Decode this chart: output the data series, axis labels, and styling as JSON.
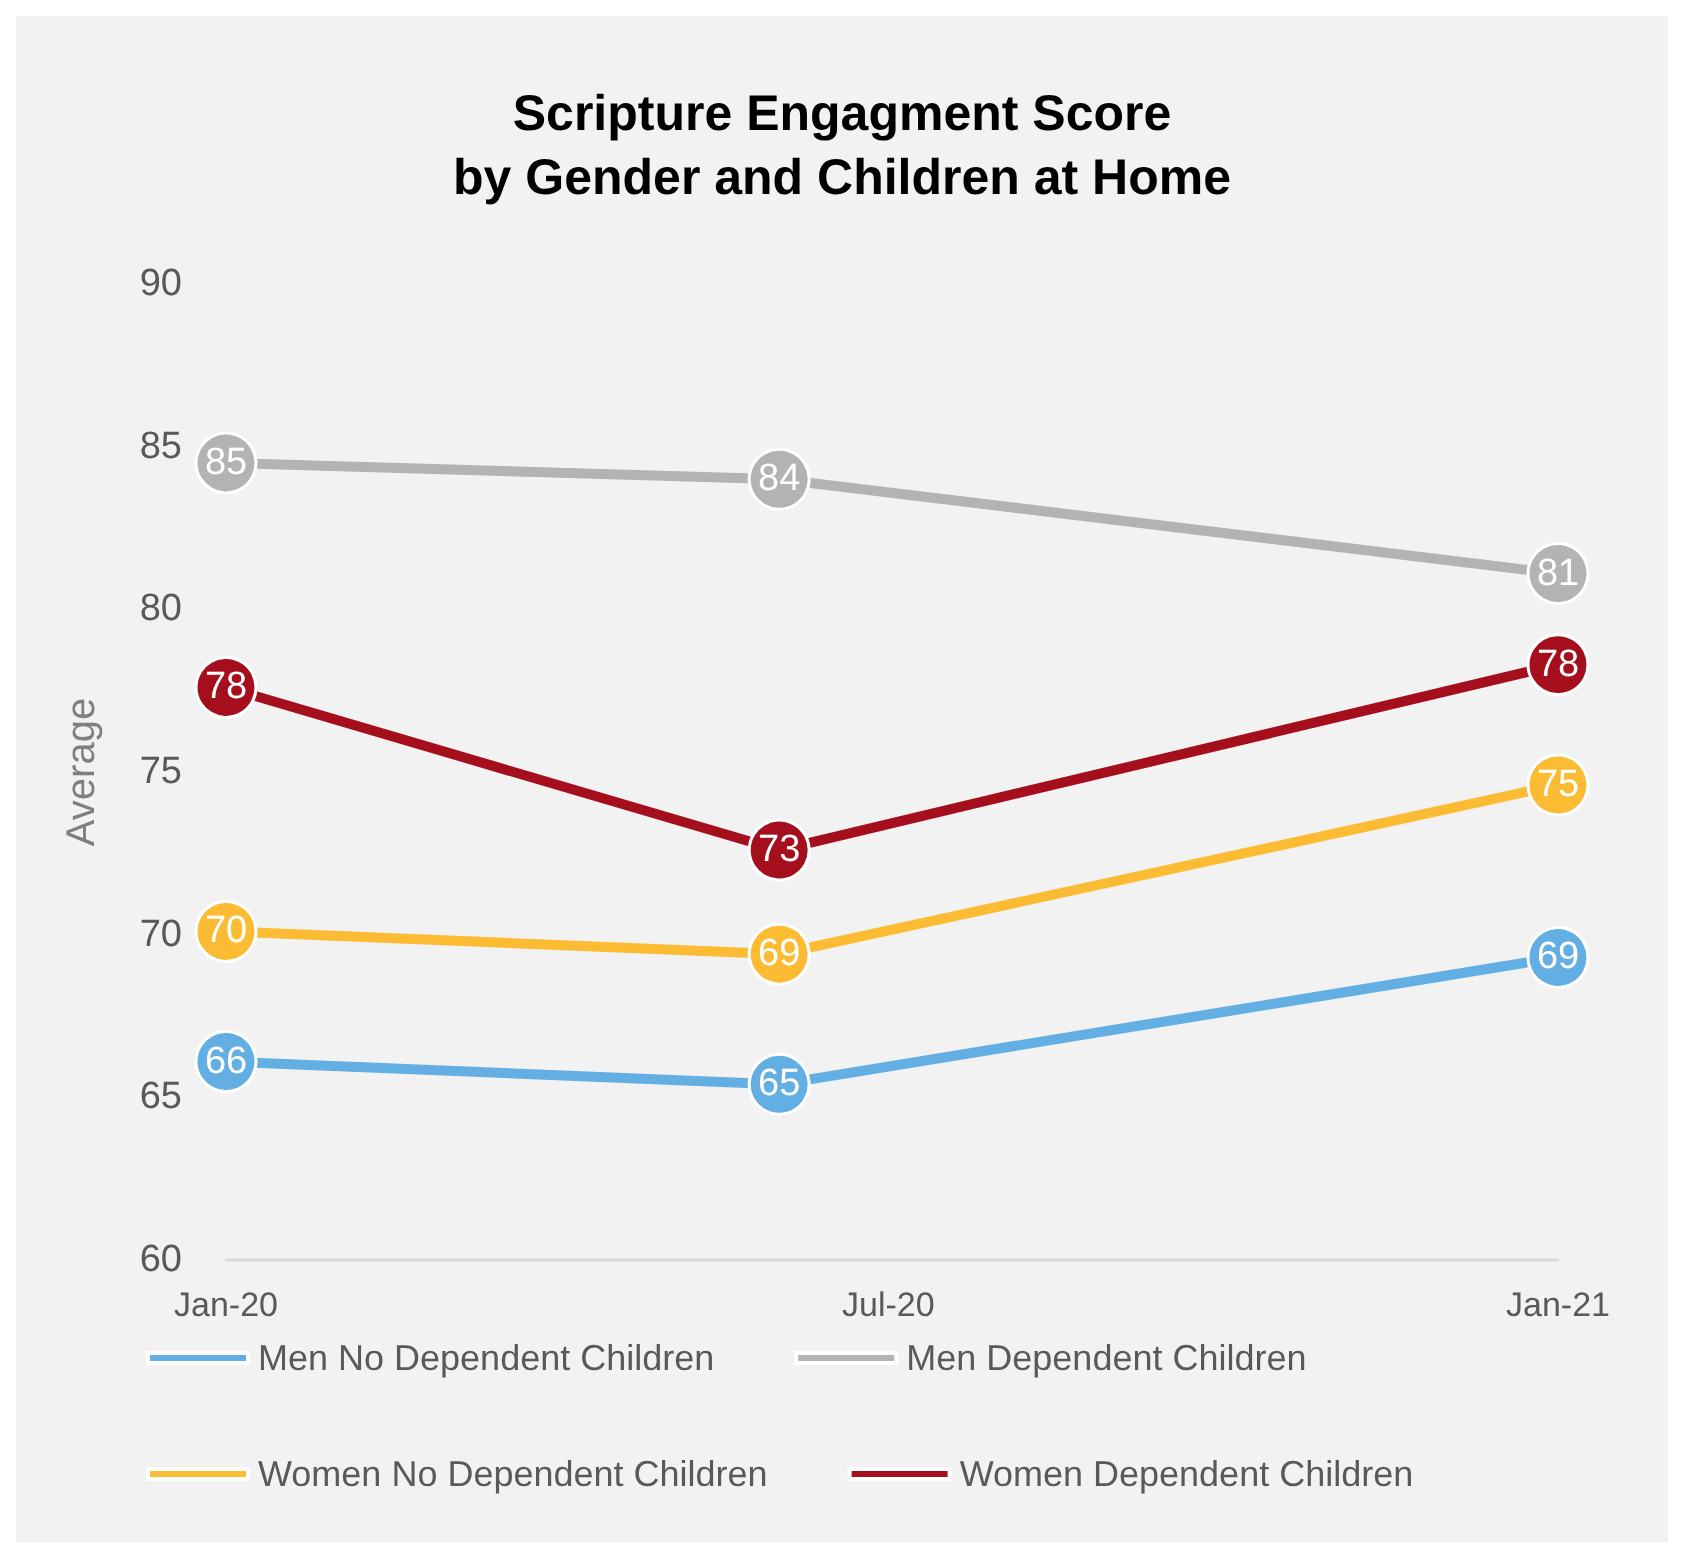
{
  "chart_data": {
    "type": "line",
    "title": "Scripture Engagment Score\nby Gender and Children at Home",
    "ylabel": "Average",
    "x": [
      "2020-01",
      "2020-06",
      "2021-01"
    ],
    "xlim": [
      "2020-01",
      "2021-01"
    ],
    "xticks": [
      {
        "value": "2020-01",
        "label": "Jan-20"
      },
      {
        "value": "2020-07",
        "label": "Jul-20"
      },
      {
        "value": "2021-01",
        "label": "Jan-21"
      }
    ],
    "ylim": [
      60,
      90
    ],
    "yticks": [
      60,
      65,
      70,
      75,
      80,
      85,
      90
    ],
    "series": [
      {
        "name": "Men No Dependent Children",
        "color": "#63aee2",
        "values": [
          66.1,
          65.4,
          69.3
        ],
        "value_labels": [
          "66",
          "65",
          "69"
        ]
      },
      {
        "name": "Men Dependent Children",
        "color": "#b3b3b3",
        "values": [
          84.5,
          84.0,
          81.1
        ],
        "value_labels": [
          "85",
          "84",
          "81"
        ]
      },
      {
        "name": "Women No Dependent Children",
        "color": "#fbbc34",
        "values": [
          70.1,
          69.4,
          74.6
        ],
        "value_labels": [
          "70",
          "69",
          "75"
        ]
      },
      {
        "name": "Women Dependent Children",
        "color": "#a50f1d",
        "values": [
          77.6,
          72.6,
          78.3
        ],
        "value_labels": [
          "78",
          "73",
          "78"
        ]
      }
    ],
    "grid": false,
    "legend": "bottom",
    "marker": "circle",
    "line_style": "solid"
  }
}
